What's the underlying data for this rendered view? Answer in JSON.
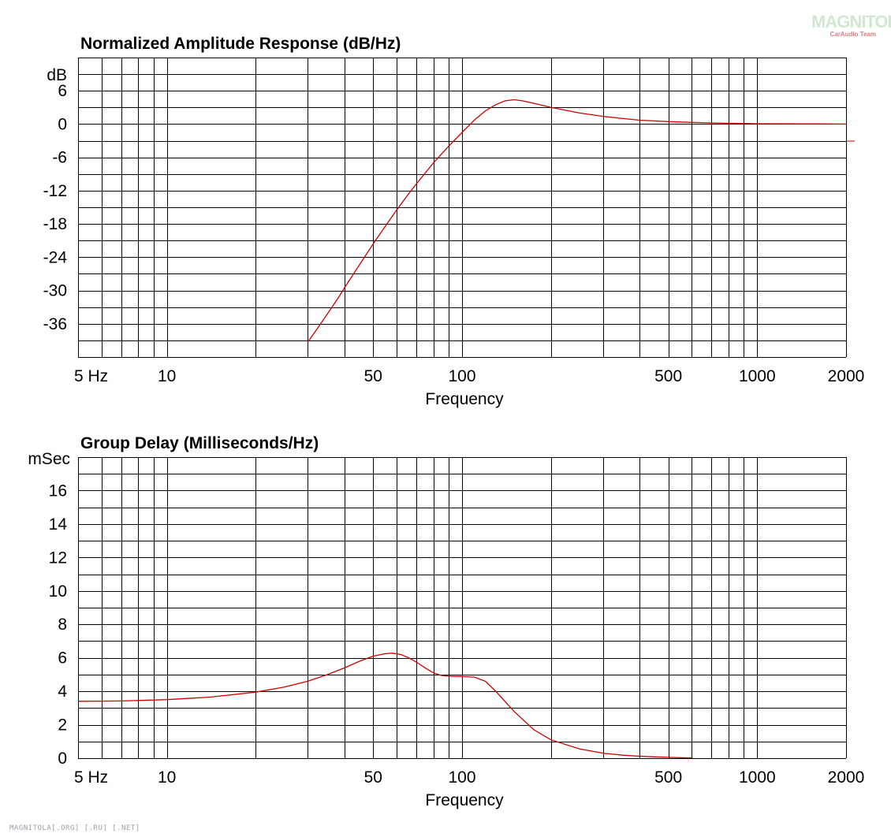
{
  "watermark": {
    "brand": "MAGNITOLA",
    "sub": "CarAudio Team"
  },
  "footer": "MAGNITOLA[.ORG] [.RU] [.NET]",
  "chart_data": [
    {
      "type": "line",
      "title": "Normalized Amplitude Response (dB/Hz)",
      "xlabel": "Frequency",
      "ylabel": "dB",
      "x_scale": "log",
      "xlim": [
        5,
        2000
      ],
      "ylim": [
        -42,
        12
      ],
      "x_tick_labels": [
        "5  Hz",
        "10",
        "50",
        "100",
        "500",
        "1000",
        "2000"
      ],
      "y_tick_labels": [
        "6",
        "0",
        "-6",
        "-12",
        "-18",
        "-24",
        "-30",
        "-36"
      ],
      "grid": true,
      "series": [
        {
          "color": "#cc0000",
          "x": [
            30,
            32,
            35,
            38,
            40,
            45,
            50,
            55,
            60,
            65,
            70,
            80,
            90,
            100,
            110,
            120,
            130,
            140,
            150,
            160,
            180,
            200,
            250,
            300,
            350,
            400,
            500,
            600,
            700,
            800,
            900,
            1000,
            1500,
            2000
          ],
          "y": [
            -39.3,
            -37.2,
            -34.2,
            -31.4,
            -29.5,
            -25.3,
            -21.6,
            -18.4,
            -15.5,
            -13.0,
            -10.8,
            -7.0,
            -4.0,
            -1.5,
            0.7,
            2.4,
            3.5,
            4.2,
            4.4,
            4.2,
            3.6,
            3.0,
            2.0,
            1.4,
            1.0,
            0.7,
            0.45,
            0.3,
            0.2,
            0.15,
            0.1,
            0.07,
            0.03,
            0.0
          ]
        }
      ]
    },
    {
      "type": "line",
      "title": "Group Delay (Milliseconds/Hz)",
      "xlabel": "Frequency",
      "ylabel": "mSec",
      "x_scale": "log",
      "xlim": [
        5,
        2000
      ],
      "ylim": [
        0,
        18
      ],
      "x_tick_labels": [
        "5  Hz",
        "10",
        "50",
        "100",
        "500",
        "1000",
        "2000"
      ],
      "y_tick_labels": [
        "16",
        "14",
        "12",
        "10",
        "8",
        "6",
        "4",
        "2",
        "0"
      ],
      "grid": true,
      "series": [
        {
          "color": "#cc0000",
          "x": [
            5,
            7,
            10,
            14,
            20,
            25,
            30,
            35,
            40,
            45,
            50,
            55,
            58,
            62,
            66,
            70,
            75,
            80,
            85,
            90,
            100,
            110,
            120,
            130,
            150,
            175,
            200,
            250,
            300,
            350,
            400,
            450,
            500,
            550,
            600
          ],
          "y": [
            3.4,
            3.42,
            3.5,
            3.65,
            3.95,
            4.25,
            4.6,
            5.0,
            5.4,
            5.8,
            6.1,
            6.25,
            6.28,
            6.2,
            6.0,
            5.75,
            5.4,
            5.1,
            4.95,
            4.9,
            4.88,
            4.85,
            4.6,
            4.0,
            2.8,
            1.7,
            1.1,
            0.55,
            0.3,
            0.18,
            0.12,
            0.08,
            0.05,
            0.03,
            0.02
          ]
        }
      ]
    }
  ]
}
